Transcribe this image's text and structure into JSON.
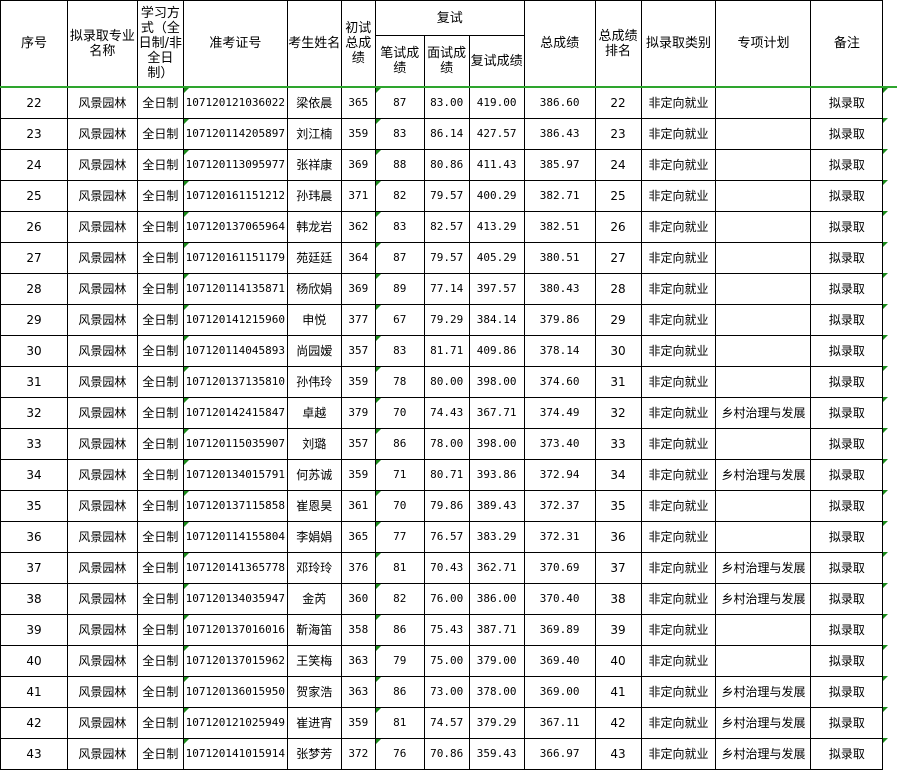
{
  "headers": {
    "seq": "序号",
    "major": "拟录取专业名称",
    "mode": "学习方式（全日制/非全日制）",
    "exam_id": "准考证号",
    "name": "考生姓名",
    "prelim": "初试总成绩",
    "retest": "复试",
    "written": "笔试成绩",
    "interview": "面试成绩",
    "retest_total": "复试成绩",
    "total": "总成绩",
    "rank": "总成绩排名",
    "category": "拟录取类别",
    "plan": "专项计划",
    "remark": "备注"
  },
  "rows": [
    [
      "22",
      "风景园林",
      "全日制",
      "107120121036022",
      "梁依晨",
      "365",
      "87",
      "83.00",
      "419.00",
      "386.60",
      "22",
      "非定向就业",
      "",
      "拟录取"
    ],
    [
      "23",
      "风景园林",
      "全日制",
      "107120114205897",
      "刘江楠",
      "359",
      "83",
      "86.14",
      "427.57",
      "386.43",
      "23",
      "非定向就业",
      "",
      "拟录取"
    ],
    [
      "24",
      "风景园林",
      "全日制",
      "107120113095977",
      "张祥康",
      "369",
      "88",
      "80.86",
      "411.43",
      "385.97",
      "24",
      "非定向就业",
      "",
      "拟录取"
    ],
    [
      "25",
      "风景园林",
      "全日制",
      "107120161151212",
      "孙玮晨",
      "371",
      "82",
      "79.57",
      "400.29",
      "382.71",
      "25",
      "非定向就业",
      "",
      "拟录取"
    ],
    [
      "26",
      "风景园林",
      "全日制",
      "107120137065964",
      "韩龙岩",
      "362",
      "83",
      "82.57",
      "413.29",
      "382.51",
      "26",
      "非定向就业",
      "",
      "拟录取"
    ],
    [
      "27",
      "风景园林",
      "全日制",
      "107120161151179",
      "苑廷廷",
      "364",
      "87",
      "79.57",
      "405.29",
      "380.51",
      "27",
      "非定向就业",
      "",
      "拟录取"
    ],
    [
      "28",
      "风景园林",
      "全日制",
      "107120114135871",
      "杨欣娟",
      "369",
      "89",
      "77.14",
      "397.57",
      "380.43",
      "28",
      "非定向就业",
      "",
      "拟录取"
    ],
    [
      "29",
      "风景园林",
      "全日制",
      "107120141215960",
      "申悦",
      "377",
      "67",
      "79.29",
      "384.14",
      "379.86",
      "29",
      "非定向就业",
      "",
      "拟录取"
    ],
    [
      "30",
      "风景园林",
      "全日制",
      "107120114045893",
      "尚园嫒",
      "357",
      "83",
      "81.71",
      "409.86",
      "378.14",
      "30",
      "非定向就业",
      "",
      "拟录取"
    ],
    [
      "31",
      "风景园林",
      "全日制",
      "107120137135810",
      "孙伟玲",
      "359",
      "78",
      "80.00",
      "398.00",
      "374.60",
      "31",
      "非定向就业",
      "",
      "拟录取"
    ],
    [
      "32",
      "风景园林",
      "全日制",
      "107120142415847",
      "卓越",
      "379",
      "70",
      "74.43",
      "367.71",
      "374.49",
      "32",
      "非定向就业",
      "乡村治理与发展",
      "拟录取"
    ],
    [
      "33",
      "风景园林",
      "全日制",
      "107120115035907",
      "刘璐",
      "357",
      "86",
      "78.00",
      "398.00",
      "373.40",
      "33",
      "非定向就业",
      "",
      "拟录取"
    ],
    [
      "34",
      "风景园林",
      "全日制",
      "107120134015791",
      "何苏诚",
      "359",
      "71",
      "80.71",
      "393.86",
      "372.94",
      "34",
      "非定向就业",
      "乡村治理与发展",
      "拟录取"
    ],
    [
      "35",
      "风景园林",
      "全日制",
      "107120137115858",
      "崔恩昊",
      "361",
      "70",
      "79.86",
      "389.43",
      "372.37",
      "35",
      "非定向就业",
      "",
      "拟录取"
    ],
    [
      "36",
      "风景园林",
      "全日制",
      "107120114155804",
      "李娟娟",
      "365",
      "77",
      "76.57",
      "383.29",
      "372.31",
      "36",
      "非定向就业",
      "",
      "拟录取"
    ],
    [
      "37",
      "风景园林",
      "全日制",
      "107120141365778",
      "邓玲玲",
      "376",
      "81",
      "70.43",
      "362.71",
      "370.69",
      "37",
      "非定向就业",
      "乡村治理与发展",
      "拟录取"
    ],
    [
      "38",
      "风景园林",
      "全日制",
      "107120134035947",
      "金芮",
      "360",
      "82",
      "76.00",
      "386.00",
      "370.40",
      "38",
      "非定向就业",
      "乡村治理与发展",
      "拟录取"
    ],
    [
      "39",
      "风景园林",
      "全日制",
      "107120137016016",
      "靳海笛",
      "358",
      "86",
      "75.43",
      "387.71",
      "369.89",
      "39",
      "非定向就业",
      "",
      "拟录取"
    ],
    [
      "40",
      "风景园林",
      "全日制",
      "107120137015962",
      "王笑梅",
      "363",
      "79",
      "75.00",
      "379.00",
      "369.40",
      "40",
      "非定向就业",
      "",
      "拟录取"
    ],
    [
      "41",
      "风景园林",
      "全日制",
      "107120136015950",
      "贺家浩",
      "363",
      "86",
      "73.00",
      "378.00",
      "369.00",
      "41",
      "非定向就业",
      "乡村治理与发展",
      "拟录取"
    ],
    [
      "42",
      "风景园林",
      "全日制",
      "107120121025949",
      "崔进宵",
      "359",
      "81",
      "74.57",
      "379.29",
      "367.11",
      "42",
      "非定向就业",
      "乡村治理与发展",
      "拟录取"
    ],
    [
      "43",
      "风景园林",
      "全日制",
      "107120141015914",
      "张梦芳",
      "372",
      "76",
      "70.86",
      "359.43",
      "366.97",
      "43",
      "非定向就业",
      "乡村治理与发展",
      "拟录取"
    ]
  ]
}
